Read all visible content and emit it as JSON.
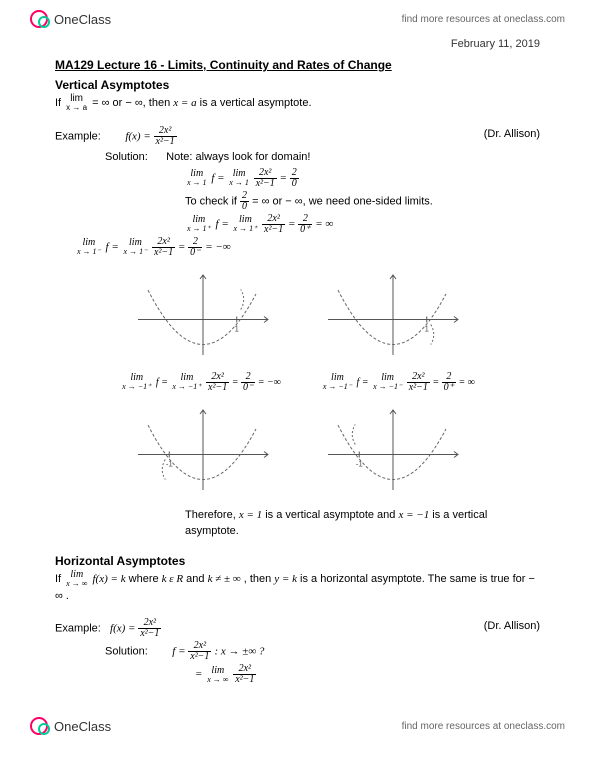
{
  "brand": {
    "name": "OneClass",
    "link_text": "find more resources at oneclass.com"
  },
  "date": "February 11, 2019",
  "title": "MA129 Lecture 16 - Limits, Continuity and Rates of Change",
  "section1": {
    "heading": "Vertical Asymptotes",
    "intro_prefix": "If ",
    "intro_mid": " = ∞ or − ∞, then ",
    "intro_var": "x = a",
    "intro_suffix": " is a vertical asymptote.",
    "example_label": "Example:",
    "fx": "f(x) = ",
    "attrib": "(Dr. Allison)",
    "solution_label": "Solution:",
    "note": "Note: always look for domain!",
    "check_prefix": "To check if ",
    "check_suffix": " = ∞ or − ∞, we need one-sided limits.",
    "conclusion_prefix": "Therefore, ",
    "conclusion_v1": "x = 1",
    "conclusion_mid": " is a vertical asymptote and ",
    "conclusion_v2": "x = −1",
    "conclusion_suffix": " is a vertical asymptote."
  },
  "section2": {
    "heading": "Horizontal Asymptotes",
    "intro_prefix": "If ",
    "intro_cond": " where ",
    "intro_k": "k ε R",
    "intro_and": " and ",
    "intro_kne": "k ≠ ± ∞",
    "intro_then": " , then ",
    "intro_yk": "y = k",
    "intro_suffix": " is a horizontal asymptote. The same is true for − ∞ .",
    "example_label": "Example:",
    "fx": "f(x) = ",
    "attrib": "(Dr. Allison)",
    "solution_label": "Solution:",
    "sol_line1_suffix": " : x → ±∞ ?",
    "sol_line2_prefix": "= "
  },
  "limits": {
    "lim_xa": {
      "top": "lim",
      "bot": "x → a"
    },
    "lim_x1": {
      "top": "lim",
      "bot": "x → 1"
    },
    "lim_x1p": {
      "top": "lim",
      "bot": "x → 1⁺"
    },
    "lim_x1m": {
      "top": "lim",
      "bot": "x → 1⁻"
    },
    "lim_xm1p": {
      "top": "lim",
      "bot": "x → −1⁺"
    },
    "lim_xm1m": {
      "top": "lim",
      "bot": "x → −1⁻"
    },
    "lim_xinf": {
      "top": "lim",
      "bot": "x → ∞"
    }
  },
  "fractions": {
    "main": {
      "num": "2x²",
      "den": "x²−1"
    },
    "two_zero": {
      "num": "2",
      "den": "0"
    },
    "two_zp": {
      "num": "2",
      "den": "0⁺"
    },
    "two_zm": {
      "num": "2",
      "den": "0⁻"
    }
  },
  "charts": {
    "colors": {
      "axis": "#555555",
      "curve": "#666666",
      "bg": "#ffffff"
    },
    "c1": {
      "vline_x": 0.75,
      "dir": "right-up",
      "label": "1"
    },
    "c2": {
      "vline_x": 0.75,
      "dir": "right-down",
      "label": "1"
    },
    "c3": {
      "vline_x": -0.75,
      "dir": "left-down",
      "label": "-1"
    },
    "c4": {
      "vline_x": -0.75,
      "dir": "left-up",
      "label": "-1"
    }
  },
  "eq_under_charts": {
    "e1_suffix": " = −∞",
    "e2_suffix": " = ∞",
    "e3_suffix": " = −∞",
    "e4_suffix": " = ∞",
    "f": "f = "
  }
}
